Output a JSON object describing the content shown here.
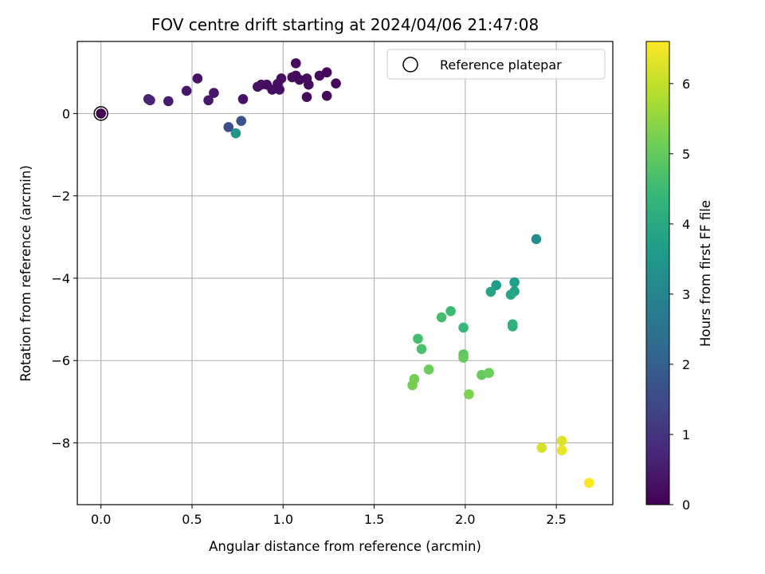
{
  "chart_data": {
    "type": "scatter",
    "title": "FOV centre drift starting at 2024/04/06 21:47:08",
    "xlabel": "Angular distance from reference (arcmin)",
    "ylabel": "Rotation from reference (arcmin)",
    "xlim": [
      -0.13,
      2.81
    ],
    "ylim": [
      -9.5,
      1.75
    ],
    "x_ticks": [
      0.0,
      0.5,
      1.0,
      1.5,
      2.0,
      2.5
    ],
    "x_tick_labels": [
      "0.0",
      "0.5",
      "1.0",
      "1.5",
      "2.0",
      "2.5"
    ],
    "y_ticks": [
      0,
      -2,
      -4,
      -6,
      -8
    ],
    "y_tick_labels": [
      "0",
      "−2",
      "−4",
      "−6",
      "−8"
    ],
    "grid": true,
    "legend": {
      "placement": "top-right",
      "entries": [
        {
          "label": "Reference platepar",
          "marker": "open-circle"
        }
      ]
    },
    "reference_point": {
      "x": 0.0,
      "y": 0.0
    },
    "colorbar": {
      "label": "Hours from first FF file",
      "min": 0,
      "max": 6.6,
      "ticks": [
        0,
        1,
        2,
        3,
        4,
        5,
        6
      ],
      "tick_labels": [
        "0",
        "1",
        "2",
        "3",
        "4",
        "5",
        "6"
      ],
      "colormap": [
        "#440154",
        "#482878",
        "#3e4989",
        "#31688e",
        "#26828e",
        "#1f9e89",
        "#35b779",
        "#6ece58",
        "#b5de2b",
        "#fde725"
      ]
    },
    "points": [
      {
        "x": 0.0,
        "y": 0.0,
        "c": 0.0
      },
      {
        "x": 0.26,
        "y": 0.35,
        "c": 0.6
      },
      {
        "x": 0.27,
        "y": 0.32,
        "c": 0.65
      },
      {
        "x": 0.37,
        "y": 0.3,
        "c": 0.5
      },
      {
        "x": 0.47,
        "y": 0.55,
        "c": 0.4
      },
      {
        "x": 0.53,
        "y": 0.85,
        "c": 0.35
      },
      {
        "x": 0.59,
        "y": 0.32,
        "c": 0.45
      },
      {
        "x": 0.62,
        "y": 0.5,
        "c": 0.4
      },
      {
        "x": 0.78,
        "y": 0.35,
        "c": 0.3
      },
      {
        "x": 0.86,
        "y": 0.65,
        "c": 0.3
      },
      {
        "x": 0.88,
        "y": 0.7,
        "c": 0.3
      },
      {
        "x": 0.91,
        "y": 0.7,
        "c": 0.25
      },
      {
        "x": 0.94,
        "y": 0.58,
        "c": 0.25
      },
      {
        "x": 0.97,
        "y": 0.72,
        "c": 0.25
      },
      {
        "x": 0.98,
        "y": 0.58,
        "c": 0.25
      },
      {
        "x": 0.99,
        "y": 0.85,
        "c": 0.25
      },
      {
        "x": 1.05,
        "y": 0.88,
        "c": 0.2
      },
      {
        "x": 1.07,
        "y": 0.92,
        "c": 0.2
      },
      {
        "x": 1.07,
        "y": 1.22,
        "c": 0.2
      },
      {
        "x": 1.09,
        "y": 0.82,
        "c": 0.2
      },
      {
        "x": 1.13,
        "y": 0.85,
        "c": 0.2
      },
      {
        "x": 1.13,
        "y": 0.4,
        "c": 0.2
      },
      {
        "x": 1.14,
        "y": 0.7,
        "c": 0.2
      },
      {
        "x": 1.2,
        "y": 0.92,
        "c": 0.15
      },
      {
        "x": 1.24,
        "y": 1.0,
        "c": 0.15
      },
      {
        "x": 1.24,
        "y": 0.43,
        "c": 0.15
      },
      {
        "x": 1.29,
        "y": 0.73,
        "c": 0.15
      },
      {
        "x": 0.7,
        "y": -0.33,
        "c": 1.6
      },
      {
        "x": 0.77,
        "y": -0.18,
        "c": 1.7
      },
      {
        "x": 0.74,
        "y": -0.48,
        "c": 3.4
      },
      {
        "x": 2.39,
        "y": -3.05,
        "c": 3.2
      },
      {
        "x": 2.17,
        "y": -4.17,
        "c": 3.6
      },
      {
        "x": 2.14,
        "y": -4.33,
        "c": 3.9
      },
      {
        "x": 2.27,
        "y": -4.1,
        "c": 3.7
      },
      {
        "x": 2.27,
        "y": -4.32,
        "c": 3.8
      },
      {
        "x": 2.25,
        "y": -4.4,
        "c": 3.9
      },
      {
        "x": 2.26,
        "y": -5.12,
        "c": 4.1
      },
      {
        "x": 2.26,
        "y": -5.17,
        "c": 4.2
      },
      {
        "x": 1.99,
        "y": -5.2,
        "c": 4.4
      },
      {
        "x": 1.92,
        "y": -4.8,
        "c": 4.5
      },
      {
        "x": 1.87,
        "y": -4.95,
        "c": 4.6
      },
      {
        "x": 1.74,
        "y": -5.47,
        "c": 4.6
      },
      {
        "x": 1.76,
        "y": -5.72,
        "c": 4.7
      },
      {
        "x": 1.99,
        "y": -5.85,
        "c": 4.9
      },
      {
        "x": 1.99,
        "y": -5.93,
        "c": 5.0
      },
      {
        "x": 1.8,
        "y": -6.22,
        "c": 5.1
      },
      {
        "x": 2.09,
        "y": -6.35,
        "c": 5.0
      },
      {
        "x": 2.13,
        "y": -6.3,
        "c": 5.1
      },
      {
        "x": 1.72,
        "y": -6.45,
        "c": 5.2
      },
      {
        "x": 1.71,
        "y": -6.6,
        "c": 5.2
      },
      {
        "x": 2.02,
        "y": -6.82,
        "c": 5.3
      },
      {
        "x": 2.42,
        "y": -8.12,
        "c": 6.2
      },
      {
        "x": 2.53,
        "y": -7.95,
        "c": 6.3
      },
      {
        "x": 2.53,
        "y": -8.18,
        "c": 6.4
      },
      {
        "x": 2.68,
        "y": -8.97,
        "c": 6.6
      }
    ]
  }
}
